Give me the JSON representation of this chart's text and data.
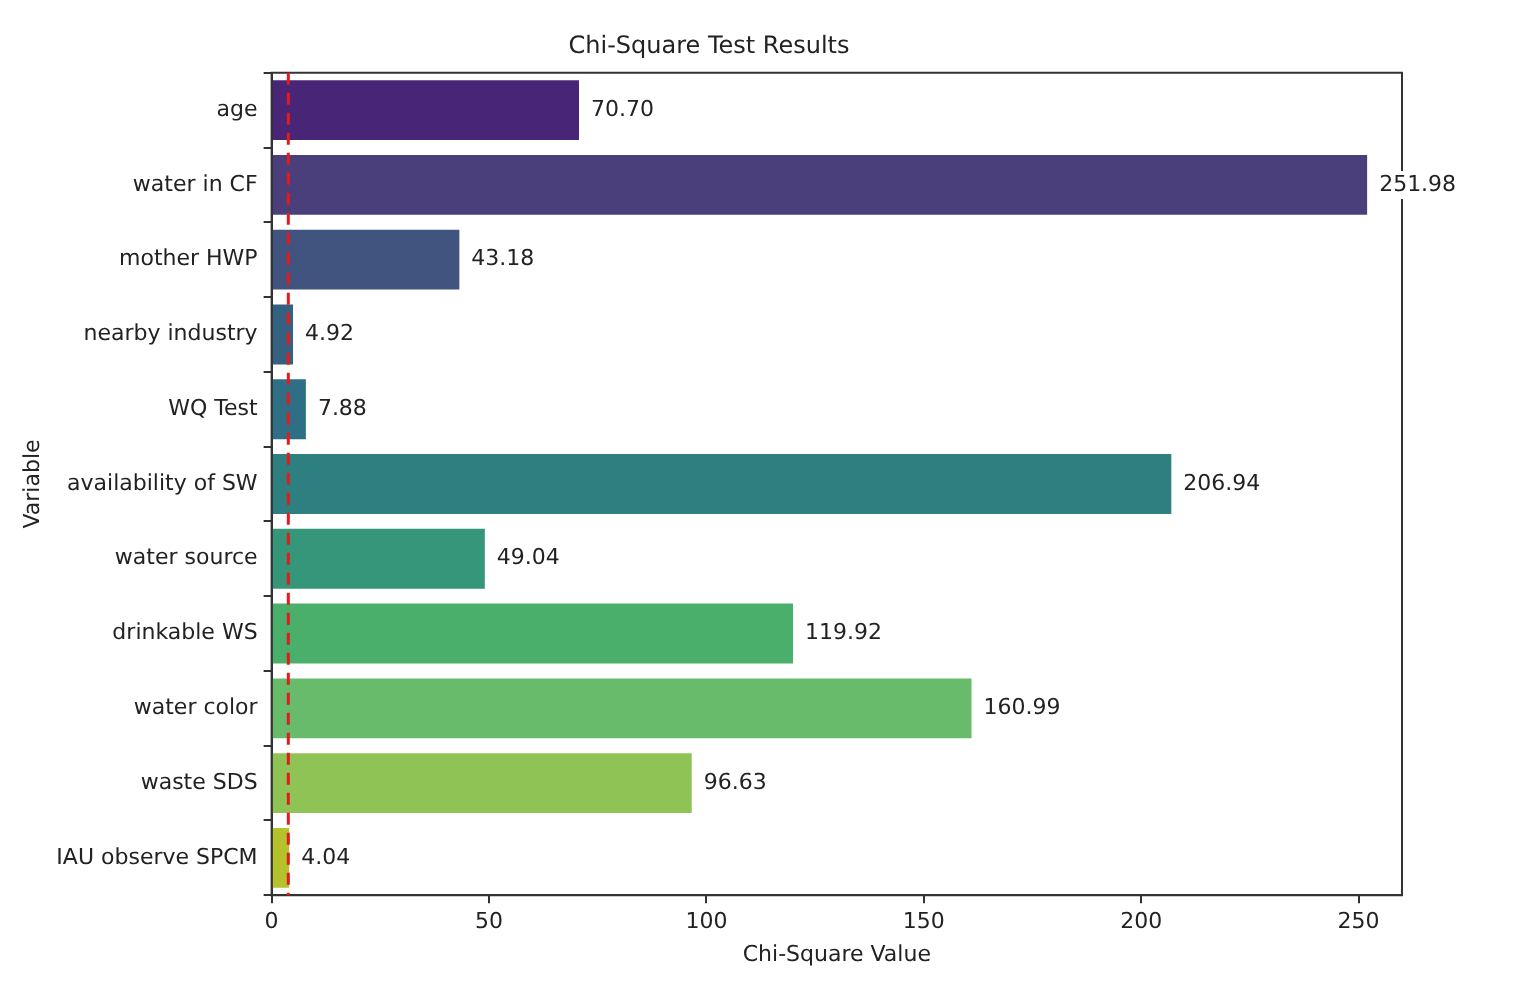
{
  "chart_data": {
    "type": "bar",
    "orientation": "horizontal",
    "title": "Chi-Square Test Results",
    "xlabel": "Chi-Square Value",
    "ylabel": "Variable",
    "categories": [
      "age",
      "water in CF",
      "mother HWP",
      "nearby industry",
      "WQ Test",
      "availability of SW",
      "water source",
      "drinkable WS",
      "water color",
      "waste SDS",
      "IAU observe SPCM"
    ],
    "values": [
      70.7,
      251.98,
      43.18,
      4.92,
      7.88,
      206.94,
      49.04,
      119.92,
      160.99,
      96.63,
      4.04
    ],
    "colors": [
      "#482576",
      "#4a3f7b",
      "#41537f",
      "#356181",
      "#2e6f85",
      "#2e8080",
      "#35967a",
      "#4aaf6a",
      "#68bb6a",
      "#90c355",
      "#b5c22c"
    ],
    "xlim": [
      0,
      260
    ],
    "xticks": [
      0,
      50,
      100,
      150,
      200,
      250
    ],
    "ref_lines": [
      {
        "axis": "x",
        "value": 3.84,
        "color": "#e41a1c",
        "line_style": "dashed"
      }
    ],
    "value_labels": [
      "70.70",
      "251.98",
      "43.18",
      "4.92",
      "7.88",
      "206.94",
      "49.04",
      "119.92",
      "160.99",
      "96.63",
      "4.04"
    ],
    "grid": false,
    "legend": false
  }
}
